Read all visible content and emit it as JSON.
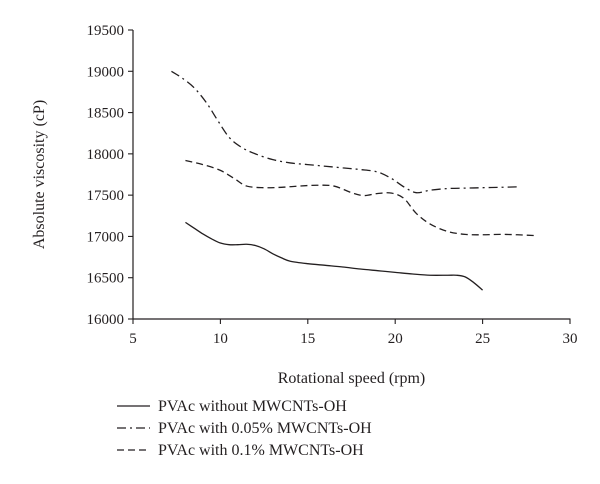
{
  "chart_data": {
    "type": "line",
    "title": "",
    "xlabel": "Rotational speed (rpm)",
    "ylabel": "Absolute viscosity (cP)",
    "xlim": [
      5,
      30
    ],
    "ylim": [
      16000,
      19500
    ],
    "xticks": [
      5,
      10,
      15,
      20,
      25,
      30
    ],
    "yticks": [
      16000,
      16500,
      17000,
      17500,
      18000,
      18500,
      19000,
      19500
    ],
    "grid": false,
    "legend_position": "bottom",
    "series": [
      {
        "name": "PVAc without MWCNTs-OH",
        "dash": "solid",
        "x": [
          8,
          8.5,
          9,
          9.5,
          10,
          10.5,
          11,
          11.5,
          12,
          12.5,
          13,
          13.5,
          14,
          15,
          16,
          17,
          18,
          19,
          20,
          21,
          22,
          23,
          23.5,
          24,
          24.5,
          25
        ],
        "y": [
          17170,
          17100,
          17030,
          16970,
          16920,
          16900,
          16900,
          16905,
          16890,
          16850,
          16790,
          16740,
          16700,
          16670,
          16650,
          16630,
          16605,
          16585,
          16565,
          16545,
          16530,
          16530,
          16530,
          16510,
          16440,
          16350
        ]
      },
      {
        "name": "PVAc with 0.05% MWCNTs-OH",
        "dash": "dashdot",
        "x": [
          7.2,
          7.8,
          8.5,
          9.2,
          9.8,
          10.5,
          11.2,
          12,
          13,
          14,
          15,
          16,
          17,
          18,
          19,
          19.8,
          20.5,
          21.2,
          22,
          23,
          24,
          25,
          26,
          27
        ],
        "y": [
          19000,
          18920,
          18800,
          18620,
          18420,
          18200,
          18080,
          18000,
          17930,
          17890,
          17870,
          17850,
          17830,
          17810,
          17780,
          17700,
          17600,
          17530,
          17560,
          17580,
          17585,
          17590,
          17595,
          17600
        ]
      },
      {
        "name": "PVAc with 0.1% MWCNTs-OH",
        "dash": "dashed",
        "x": [
          8,
          9,
          10,
          10.8,
          11.5,
          12.5,
          13.5,
          14.5,
          15.5,
          16.5,
          17.5,
          18.2,
          19,
          19.8,
          20.5,
          21.2,
          22,
          23,
          24,
          25,
          26,
          27,
          28
        ],
        "y": [
          17920,
          17870,
          17800,
          17700,
          17610,
          17590,
          17595,
          17610,
          17620,
          17610,
          17530,
          17495,
          17520,
          17525,
          17460,
          17280,
          17150,
          17060,
          17025,
          17020,
          17025,
          17020,
          17010
        ]
      }
    ]
  }
}
